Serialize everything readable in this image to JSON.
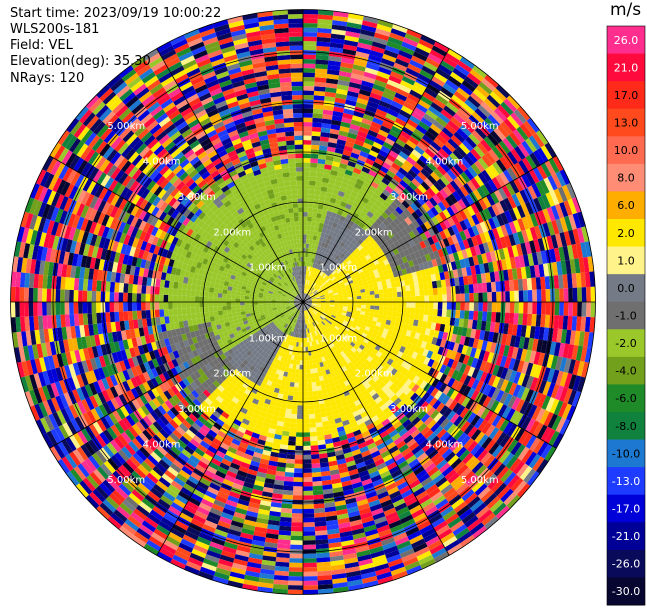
{
  "info": {
    "start_time": "Start time: 2023/09/19 10:00:22",
    "instrument": "WLS200s-181",
    "field": "Field: VEL",
    "elevation": "Elevation(deg): 35.30",
    "nrays": "NRays: 120"
  },
  "colorbar": {
    "unit": "m/s",
    "levels": [
      {
        "label": "26.0",
        "color": "#ff2e8e"
      },
      {
        "label": "21.0",
        "color": "#ff0a3c"
      },
      {
        "label": "17.0",
        "color": "#ff2a1a"
      },
      {
        "label": "13.0",
        "color": "#ff4a1e"
      },
      {
        "label": "10.0",
        "color": "#ff6a50"
      },
      {
        "label": "8.0",
        "color": "#ff8c74"
      },
      {
        "label": "6.0",
        "color": "#ffae00"
      },
      {
        "label": "2.0",
        "color": "#ffe800"
      },
      {
        "label": "1.0",
        "color": "#fff38a"
      },
      {
        "label": "0.0",
        "color": "#747a86"
      },
      {
        "label": "-1.0",
        "color": "#6f6f6f"
      },
      {
        "label": "-2.0",
        "color": "#9ac82a"
      },
      {
        "label": "-4.0",
        "color": "#72a01c"
      },
      {
        "label": "-6.0",
        "color": "#1e8a28"
      },
      {
        "label": "-8.0",
        "color": "#11823e"
      },
      {
        "label": "-10.0",
        "color": "#1c78d0"
      },
      {
        "label": "-13.0",
        "color": "#1e3cff"
      },
      {
        "label": "-17.0",
        "color": "#0000d8"
      },
      {
        "label": "-21.0",
        "color": "#000096"
      },
      {
        "label": "-26.0",
        "color": "#0a0a5a"
      },
      {
        "label": "-30.0",
        "color": "#060630"
      }
    ]
  },
  "chart_data": {
    "type": "heatmap",
    "projection": "polar PPI",
    "field": "VEL",
    "units": "m/s",
    "nrays": 120,
    "elevation_deg": 35.3,
    "value_range": [
      -30.0,
      26.0
    ],
    "range_rings": [
      {
        "range_km": 1.0,
        "label": "1.00km"
      },
      {
        "range_km": 2.0,
        "label": "2.00km"
      },
      {
        "range_km": 3.0,
        "label": "3.00km"
      },
      {
        "range_km": 4.0,
        "label": "4.00km"
      },
      {
        "range_km": 5.0,
        "label": "5.00km"
      }
    ],
    "max_range_km": 5.85,
    "spoke_angles_deg": [
      0,
      30,
      60,
      90,
      120,
      150,
      180,
      210,
      240,
      270,
      300,
      330
    ],
    "velocity_pattern": {
      "near_field_km": [
        0,
        0.7
      ],
      "near_field_values": "yellow (+1 to +2 m/s) to the east, grey (0 to -1 m/s) and green (-2 to -4 m/s) to the west",
      "mid_field_km": [
        0.7,
        2.6
      ],
      "mid_field_values": "green (-2 to -4 m/s) in the west half, yellow (+1 to +2 m/s) in the east and south-east, grey near zero",
      "far_field_km": [
        2.6,
        5.85
      ],
      "far_field_values": "noise spanning the full colour scale -30 to +26 m/s"
    }
  }
}
